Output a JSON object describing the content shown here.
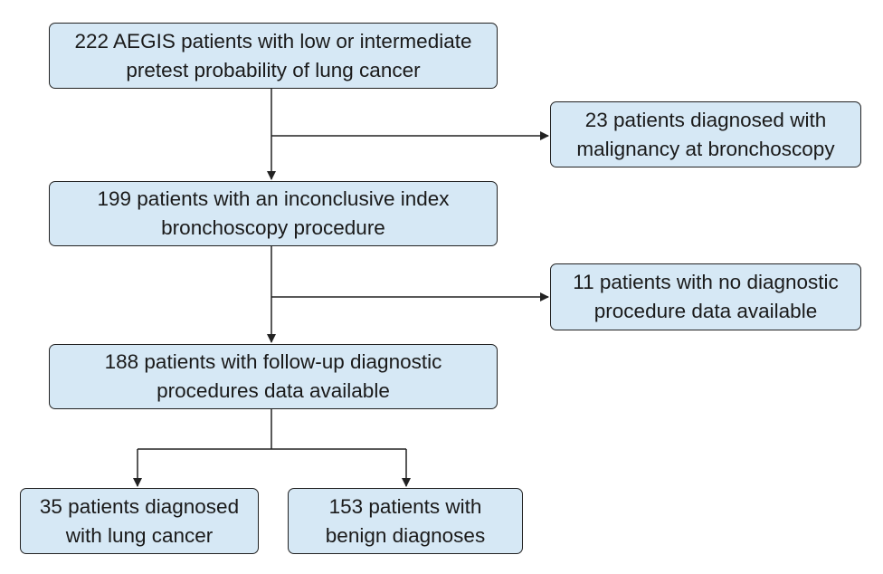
{
  "boxes": {
    "start": {
      "lines": [
        "222 AEGIS patients with low or intermediate",
        "pretest probability of lung cancer"
      ]
    },
    "excluded_malignancy": {
      "lines": [
        "23 patients diagnosed with",
        "malignancy at bronchoscopy"
      ]
    },
    "inconclusive": {
      "lines": [
        "199 patients with an inconclusive index",
        "bronchoscopy procedure"
      ]
    },
    "excluded_no_data": {
      "lines": [
        "11 patients with no diagnostic",
        "procedure data available"
      ]
    },
    "followup": {
      "lines": [
        "188 patients with follow-up diagnostic",
        "procedures data available"
      ]
    },
    "lung_cancer": {
      "lines": [
        "35 patients diagnosed",
        "with lung cancer"
      ]
    },
    "benign": {
      "lines": [
        "153 patients with",
        "benign diagnoses"
      ]
    }
  },
  "colors": {
    "box_fill": "#d6e8f5",
    "box_border": "#222222",
    "arrow": "#222222"
  }
}
